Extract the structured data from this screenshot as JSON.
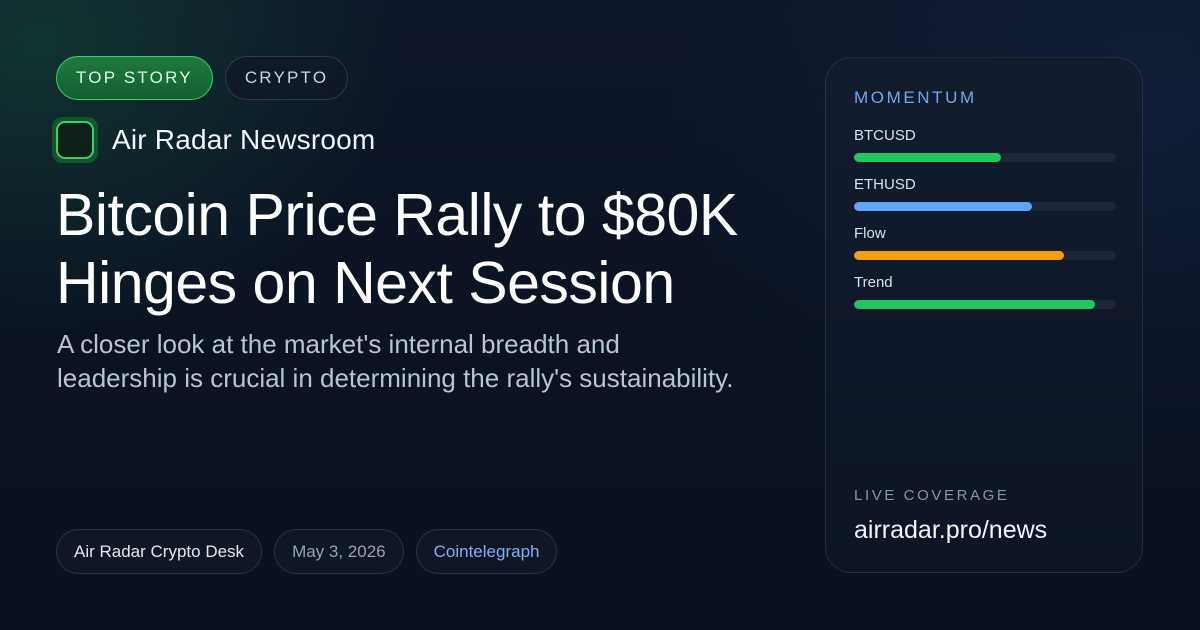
{
  "tags": [
    "TOP STORY",
    "CRYPTO"
  ],
  "brand": {
    "name": "Air Radar Newsroom"
  },
  "article": {
    "headline": "Bitcoin Price Rally to $80K Hinges on Next Session",
    "summary": "A closer look at the market's internal breadth and leadership is crucial in determining the rally's sustainability."
  },
  "meta": {
    "author": "Air Radar Crypto Desk",
    "date": "May 3, 2026",
    "source": "Cointelegraph"
  },
  "panel": {
    "title": "MOMENTUM",
    "meters": [
      {
        "label": "BTCUSD",
        "level": 0.56,
        "color": "#22c55e"
      },
      {
        "label": "ETHUSD",
        "level": 0.68,
        "color": "#60a5fa"
      },
      {
        "label": "Flow",
        "level": 0.8,
        "color": "#f59e0b"
      },
      {
        "label": "Trend",
        "level": 0.92,
        "color": "#22c55e"
      }
    ],
    "footer_label": "LIVE COVERAGE",
    "footer_url": "airradar.pro/news"
  }
}
